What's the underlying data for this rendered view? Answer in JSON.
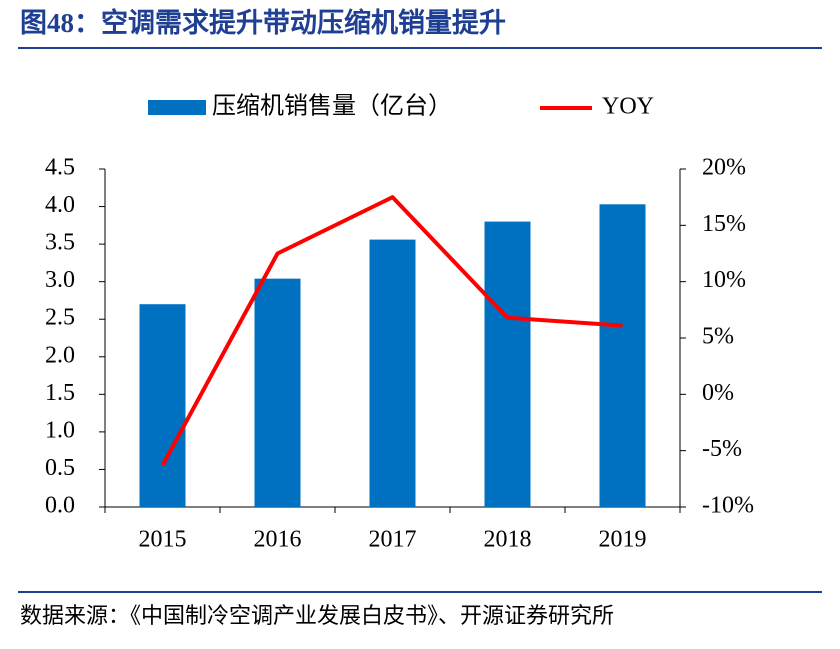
{
  "chart_data": {
    "type": "combo",
    "title": "图48：空调需求提升带动压缩机销量提升",
    "source": "数据来源：《中国制冷空调产业发展白皮书》、开源证券研究所",
    "categories": [
      "2015",
      "2016",
      "2017",
      "2018",
      "2019"
    ],
    "series": [
      {
        "name": "压缩机销售量（亿台）",
        "type": "bar",
        "color": "#0070c0",
        "values": [
          2.7,
          3.04,
          3.56,
          3.8,
          4.03
        ]
      },
      {
        "name": "YOY",
        "type": "line",
        "axis": "y2",
        "color": "#ff0000",
        "values": [
          -6.3,
          12.5,
          17.5,
          6.8,
          6.1
        ]
      }
    ],
    "ylim": [
      0,
      4.5
    ],
    "yticks": [
      {
        "value": 0,
        "label": "0.0"
      },
      0.5,
      {
        "value": 1,
        "label": "1.0"
      },
      1.5,
      {
        "value": 2,
        "label": "2.0"
      },
      2.5,
      {
        "value": 3,
        "label": "3.0"
      },
      3.5,
      {
        "value": 4,
        "label": "4.0"
      },
      4.5
    ],
    "y2lim": [
      -10,
      20
    ],
    "y2ticks": [
      {
        "value": -10,
        "label": "-10%"
      },
      {
        "value": -5,
        "label": "-5%"
      },
      {
        "value": 0,
        "label": "0%"
      },
      {
        "value": 5,
        "label": "5%"
      },
      {
        "value": 10,
        "label": "10%"
      },
      {
        "value": 15,
        "label": "15%"
      },
      {
        "value": 20,
        "label": "20%"
      }
    ]
  }
}
